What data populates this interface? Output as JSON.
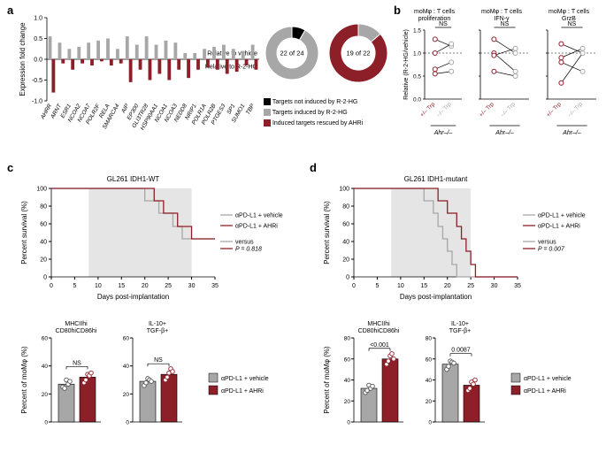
{
  "panel_a": {
    "label": "a",
    "y_label_top": "Relative to vehicle",
    "y_label_bottom": "Relative to R-2-HG",
    "ylabel": "Expression fold change",
    "ylim": [
      -1.0,
      1.0
    ],
    "yticks": [
      -1.0,
      -0.5,
      0,
      0.5,
      1.0
    ],
    "genes": [
      "AHRR",
      "ARNT",
      "ESR1",
      "NCOA2",
      "NCOA7",
      "POLR2F",
      "RELA",
      "SMARCA4",
      "AIP",
      "EP300",
      "GLI3TR28",
      "HSP90AA1",
      "NCOA1",
      "NCOA3",
      "NEDD8",
      "NRIP1",
      "POLR1A",
      "POLR2B",
      "PTGES3",
      "SP1",
      "SUMO1",
      "TBP"
    ],
    "gray_bars": [
      0.55,
      0.4,
      0.25,
      0.3,
      0.4,
      0.45,
      0.5,
      0.25,
      0.55,
      0.35,
      0.55,
      0.35,
      0.45,
      0.4,
      0.15,
      0.15,
      0.25,
      0.3,
      0.35,
      0.25,
      0.2,
      0.35
    ],
    "red_bars": [
      -0.8,
      -0.1,
      -0.25,
      -0.1,
      -0.15,
      -0.05,
      -0.15,
      -0.1,
      -0.55,
      -0.25,
      -0.5,
      -0.35,
      -0.5,
      -0.25,
      -0.45,
      -0.25,
      -0.2,
      -0.25,
      -0.35,
      -0.3,
      -0.15,
      -0.25
    ],
    "donut1": {
      "center_text": "22 of 24",
      "black": 2,
      "gray": 22
    },
    "donut2": {
      "center_text": "19 of 22",
      "red": 19,
      "gray": 3
    },
    "legend": [
      {
        "color": "#000000",
        "label": "Targets not induced by R-2-HG"
      },
      {
        "color": "#a7a7a7",
        "label": "Targets induced by R-2-HG"
      },
      {
        "color": "#8c1f28",
        "label": "Induced targets rescued by AHRi"
      }
    ],
    "colors": {
      "gray": "#a7a7a7",
      "red": "#8c1f28",
      "black": "#000000"
    }
  },
  "panel_b": {
    "label": "b",
    "charts": [
      {
        "title": "moMφ : T cells\nproliferation",
        "sig": "NS"
      },
      {
        "title": "moMφ : T cells\nIFN-γ",
        "sig": "NS"
      },
      {
        "title": "moMφ : T cells\nGrzB",
        "sig": "NS"
      }
    ],
    "ylabel": "Relative (R-2-HG/vehicle)",
    "ylim": [
      0,
      1.5
    ],
    "yticks": [
      0,
      0.5,
      1.0,
      1.5
    ],
    "xticks": [
      "+/– Trp",
      "–/– Trp"
    ],
    "genotype": "Ahr–/–",
    "pairs": [
      [
        [
          0.65,
          0.8
        ],
        [
          0.55,
          0.6
        ],
        [
          1.3,
          1.15
        ],
        [
          1.0,
          1.2
        ]
      ],
      [
        [
          1.3,
          1.0
        ],
        [
          1.0,
          0.6
        ],
        [
          0.95,
          1.1
        ],
        [
          0.6,
          0.5
        ]
      ],
      [
        [
          1.2,
          1.0
        ],
        [
          0.35,
          1.0
        ],
        [
          0.9,
          1.1
        ],
        [
          0.8,
          0.6
        ]
      ]
    ],
    "colors": {
      "red": "#8c1f28",
      "gray": "#a7a7a7"
    }
  },
  "panel_c": {
    "label": "c",
    "title": "GL261 IDH1-WT",
    "ylabel": "Percent survival (%)",
    "xlabel": "Days post-implantation",
    "xlim": [
      0,
      35
    ],
    "xticks": [
      0,
      5,
      10,
      15,
      20,
      25,
      30,
      35
    ],
    "ylim": [
      0,
      100
    ],
    "yticks": [
      0,
      20,
      40,
      60,
      80,
      100
    ],
    "shade": [
      8,
      30
    ],
    "legend": [
      "αPD-L1 + vehicle",
      "αPD-L1 + AHRi"
    ],
    "versus": "versus",
    "p": "P = 0.818",
    "curve_gray": [
      [
        0,
        100
      ],
      [
        20,
        100
      ],
      [
        20,
        86
      ],
      [
        23,
        86
      ],
      [
        23,
        72
      ],
      [
        26,
        72
      ],
      [
        26,
        57
      ],
      [
        28,
        57
      ],
      [
        28,
        43
      ],
      [
        35,
        43
      ]
    ],
    "curve_red": [
      [
        0,
        100
      ],
      [
        22,
        100
      ],
      [
        22,
        86
      ],
      [
        24,
        86
      ],
      [
        24,
        72
      ],
      [
        27,
        72
      ],
      [
        27,
        57
      ],
      [
        30,
        57
      ],
      [
        30,
        43
      ],
      [
        35,
        43
      ]
    ],
    "bars": {
      "titles": [
        "MHCIIhi\nCD80hiCD86hi",
        "IL-10+\nTGF-β+"
      ],
      "sig": [
        "NS",
        "NS"
      ],
      "ylabel": "Percent of moMφ (%)",
      "ylim": [
        0,
        60
      ],
      "yticks": [
        0,
        20,
        40,
        60
      ],
      "legend": [
        "αPD-L1 + vehicle",
        "αPD-L1 + AHRi"
      ],
      "values": [
        [
          27,
          32
        ],
        [
          29,
          34
        ]
      ],
      "points": [
        [
          [
            25,
            24,
            30,
            27,
            29
          ],
          [
            28,
            30,
            34,
            33,
            35
          ]
        ],
        [
          [
            26,
            28,
            31,
            30,
            29
          ],
          [
            30,
            32,
            35,
            38,
            36
          ]
        ]
      ]
    },
    "colors": {
      "gray": "#a7a7a7",
      "red": "#8c1f28",
      "shade": "#e5e5e5"
    }
  },
  "panel_d": {
    "label": "d",
    "title": "GL261 IDH1-mutant",
    "ylabel": "Percent survival (%)",
    "xlabel": "Days post-implantation",
    "xlim": [
      0,
      35
    ],
    "xticks": [
      0,
      5,
      10,
      15,
      20,
      25,
      30,
      35
    ],
    "ylim": [
      0,
      100
    ],
    "yticks": [
      0,
      20,
      40,
      60,
      80,
      100
    ],
    "shade": [
      8,
      25
    ],
    "legend": [
      "αPD-L1 + vehicle",
      "αPD-L1 + AHRi"
    ],
    "versus": "versus",
    "p": "P = 0.007",
    "curve_gray": [
      [
        0,
        100
      ],
      [
        15,
        100
      ],
      [
        15,
        86
      ],
      [
        17,
        86
      ],
      [
        17,
        72
      ],
      [
        18,
        72
      ],
      [
        18,
        57
      ],
      [
        19,
        57
      ],
      [
        19,
        43
      ],
      [
        20,
        43
      ],
      [
        20,
        29
      ],
      [
        21,
        29
      ],
      [
        21,
        14
      ],
      [
        22,
        14
      ],
      [
        22,
        0
      ],
      [
        35,
        0
      ]
    ],
    "curve_red": [
      [
        0,
        100
      ],
      [
        18,
        100
      ],
      [
        18,
        86
      ],
      [
        20,
        86
      ],
      [
        20,
        72
      ],
      [
        22,
        72
      ],
      [
        22,
        57
      ],
      [
        23,
        57
      ],
      [
        23,
        43
      ],
      [
        24,
        43
      ],
      [
        24,
        29
      ],
      [
        25,
        29
      ],
      [
        25,
        14
      ],
      [
        26,
        14
      ],
      [
        26,
        0
      ],
      [
        35,
        0
      ]
    ],
    "bars": {
      "titles": [
        "MHCIIhi\nCD80hiCD86hi",
        "IL-10+\nTGF-β+"
      ],
      "sig": [
        "<0.001",
        "0.0087"
      ],
      "ylabel": "Percent of moMφ (%)",
      "ylim": [
        0,
        80
      ],
      "yticks": [
        0,
        20,
        40,
        60,
        80
      ],
      "legend": [
        "αPD-L1 + vehicle",
        "αPD-L1 + AHRi"
      ],
      "values": [
        [
          32,
          60
        ],
        [
          55,
          35
        ]
      ],
      "points": [
        [
          [
            28,
            30,
            35,
            32,
            34
          ],
          [
            55,
            58,
            63,
            65,
            60
          ]
        ],
        [
          [
            50,
            53,
            58,
            57,
            56
          ],
          [
            30,
            32,
            38,
            36,
            40
          ]
        ]
      ]
    },
    "colors": {
      "gray": "#a7a7a7",
      "red": "#8c1f28",
      "shade": "#e5e5e5"
    }
  }
}
